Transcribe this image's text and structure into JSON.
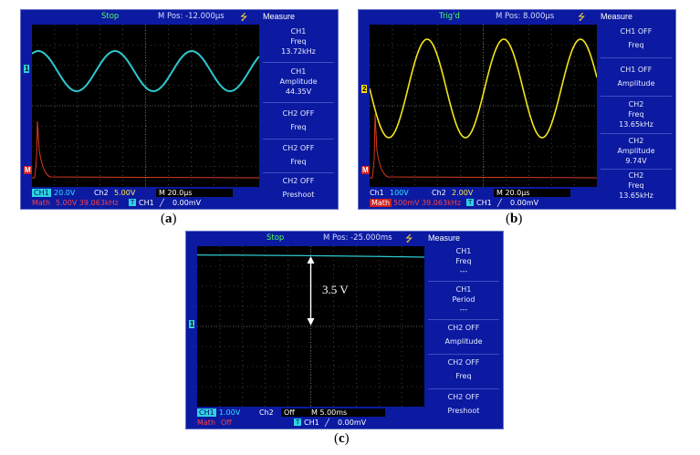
{
  "panels": {
    "a": {
      "caption_open": "(",
      "caption_letter": "a",
      "caption_close": ")",
      "run_state": "Stop",
      "mpos": "M Pos: -12.000µs",
      "menu_title": "Measure",
      "menu": [
        {
          "line1": "CH1",
          "line2": "Freq",
          "line3": "13.72kHz"
        },
        {
          "line1": "CH1",
          "line2": "Amplitude",
          "line3": "44.35V"
        },
        {
          "line1": "CH2  OFF",
          "line2": "Freq",
          "line3": ""
        },
        {
          "line1": "CH2  OFF",
          "line2": "Freq",
          "line3": ""
        },
        {
          "line1": "CH2  OFF",
          "line2": "Preshoot",
          "line3": ""
        }
      ],
      "ch1_label": "CH1",
      "ch1_scale": "20.0V",
      "ch2_label": "Ch2",
      "ch2_scale": "5.00V",
      "timebase": "M 20.0µs",
      "math_label": "Math",
      "math_info": "5.00V 39.063kHz",
      "trig_label": "CH1",
      "trig_level": "0.00mV",
      "trace_color": "#2ec8cf"
    },
    "b": {
      "caption_open": "(",
      "caption_letter": "b",
      "caption_close": ")",
      "run_state": "Trig'd",
      "mpos": "M Pos: 8.000µs",
      "menu_title": "Measure",
      "menu": [
        {
          "line1": "CH1  OFF",
          "line2": "Freq",
          "line3": ""
        },
        {
          "line1": "CH1  OFF",
          "line2": "Amplitude",
          "line3": ""
        },
        {
          "line1": "CH2",
          "line2": "Freq",
          "line3": "13.65kHz"
        },
        {
          "line1": "CH2",
          "line2": "Amplitude",
          "line3": "9.74V"
        },
        {
          "line1": "CH2",
          "line2": "Freq",
          "line3": "13.65kHz"
        }
      ],
      "ch1_label": "Ch1",
      "ch1_scale": "100V",
      "ch2_label": "Ch2",
      "ch2_scale": "2.00V",
      "timebase": "M 20.0µs",
      "math_label": "Math",
      "math_info": "500mV 39.063kHz",
      "trig_label": "CH1",
      "trig_level": "0.00mV",
      "trace_color": "#f2e51a"
    },
    "c": {
      "caption_open": "(",
      "caption_letter": "c",
      "caption_close": ")",
      "run_state": "Stop",
      "mpos": "M Pos: -25.000ms",
      "menu_title": "Measure",
      "menu": [
        {
          "line1": "CH1",
          "line2": "Freq",
          "line3": "---"
        },
        {
          "line1": "CH1",
          "line2": "Period",
          "line3": "---"
        },
        {
          "line1": "CH2  OFF",
          "line2": "Amplitude",
          "line3": ""
        },
        {
          "line1": "CH2  OFF",
          "line2": "Freq",
          "line3": ""
        },
        {
          "line1": "CH2  OFF",
          "line2": "Preshoot",
          "line3": ""
        }
      ],
      "ch1_label": "CH1",
      "ch1_scale": "1.00V",
      "ch2_label": "Ch2",
      "ch2_scale": "Off",
      "timebase": "M 5.00ms",
      "math_label": "Math",
      "math_info": "Off",
      "trig_label": "CH1",
      "trig_level": "0.00mV",
      "annotation": "3.5 V",
      "trace_color": "#2ec8cf"
    }
  }
}
